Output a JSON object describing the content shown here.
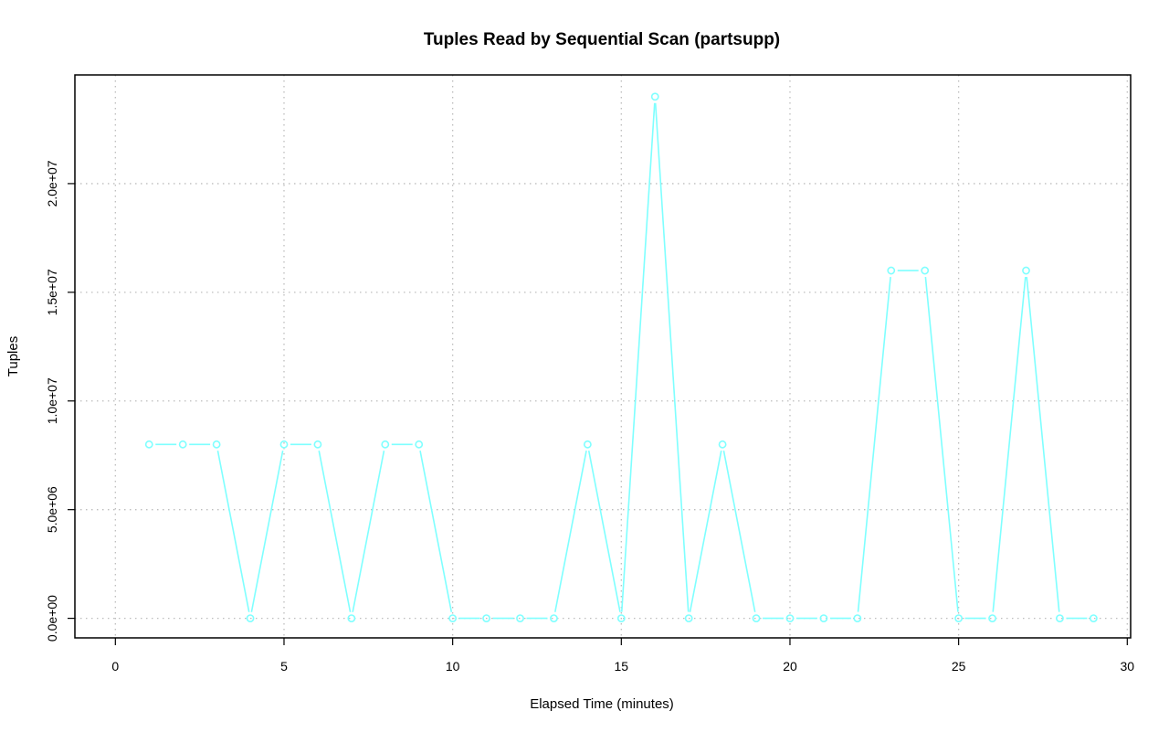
{
  "chart_data": {
    "type": "line",
    "title": "Tuples Read by Sequential Scan (partsupp)",
    "xlabel": "Elapsed Time (minutes)",
    "ylabel": "Tuples",
    "xlim": [
      -1.2,
      30.1
    ],
    "ylim": [
      -900000,
      25000000
    ],
    "xticks": [
      0,
      5,
      10,
      15,
      20,
      25,
      30
    ],
    "xtick_labels": [
      "0",
      "5",
      "10",
      "15",
      "20",
      "25",
      "30"
    ],
    "yticks": [
      0,
      5000000,
      10000000,
      15000000,
      20000000
    ],
    "ytick_labels": [
      "0.0e+00",
      "5.0e+06",
      "1.0e+07",
      "1.5e+07",
      "2.0e+07"
    ],
    "grid": true,
    "color": "#7fffff",
    "series": [
      {
        "x": [
          1,
          2,
          3,
          4,
          5,
          6,
          7,
          8,
          9,
          10,
          11,
          12,
          13,
          14,
          15,
          16,
          17,
          18,
          19,
          20,
          21,
          22,
          23,
          24,
          25,
          26,
          27,
          28,
          29
        ],
        "values": [
          8000000,
          8000000,
          8000000,
          0,
          8000000,
          8000000,
          0,
          8000000,
          8000000,
          0,
          0,
          0,
          0,
          8000000,
          0,
          24000000,
          0,
          8000000,
          0,
          0,
          0,
          0,
          16000000,
          16000000,
          0,
          0,
          16000000,
          0,
          0
        ]
      }
    ]
  }
}
